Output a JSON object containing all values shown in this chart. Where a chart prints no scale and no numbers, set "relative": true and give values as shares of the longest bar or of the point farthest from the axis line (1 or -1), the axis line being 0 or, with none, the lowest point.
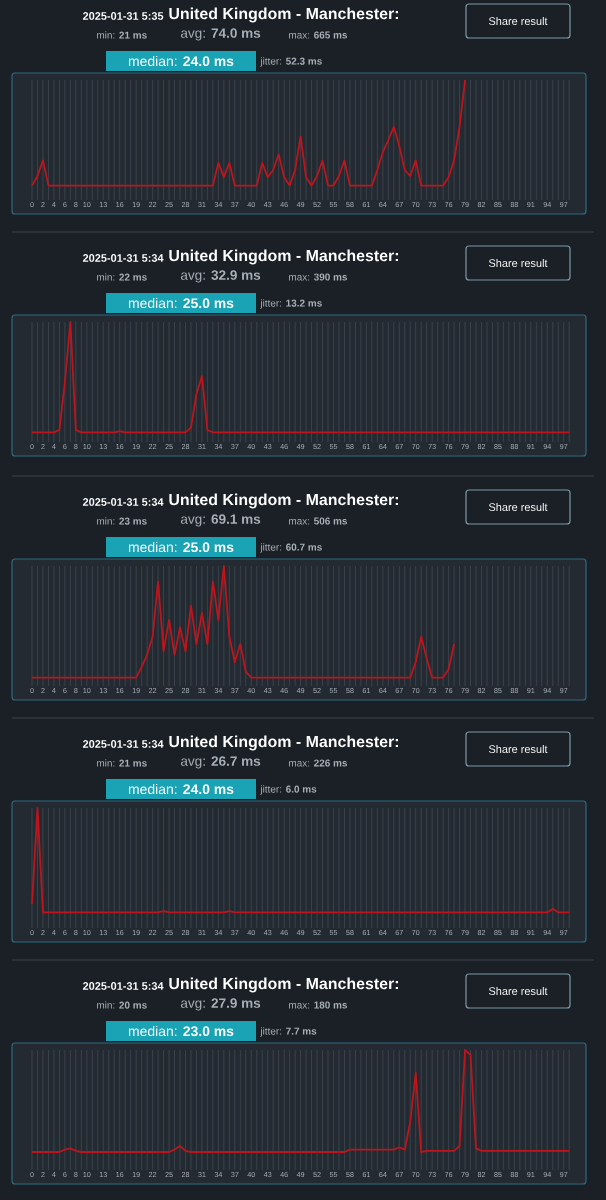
{
  "chart_data": [
    {
      "type": "line",
      "title": "United Kingdom - Manchester:",
      "subtitle": "2025-01-31 5:35",
      "relative": true,
      "grid": "x",
      "color": "#c0141c",
      "categories": [
        "0",
        null,
        "2",
        null,
        "4",
        null,
        "6",
        null,
        "8",
        null,
        "10",
        null,
        null,
        "13",
        null,
        null,
        "16",
        null,
        null,
        "19",
        null,
        null,
        "22",
        null,
        null,
        "25",
        null,
        null,
        "28",
        null,
        null,
        "31",
        null,
        null,
        "34",
        null,
        null,
        "37",
        null,
        null,
        "40",
        null,
        null,
        "43",
        null,
        null,
        "46",
        null,
        null,
        "49",
        null,
        null,
        "52",
        null,
        null,
        "55",
        null,
        null,
        "58",
        null,
        null,
        "61",
        null,
        null,
        "64",
        null,
        null,
        "67",
        null,
        null,
        "70",
        null,
        null,
        "73",
        null,
        null,
        "76",
        null,
        null,
        "79",
        null,
        null,
        "82",
        null,
        null,
        "85",
        null,
        null,
        "88",
        null,
        null,
        "91",
        null,
        null,
        "94",
        null,
        null,
        "97",
        null
      ],
      "values": [
        0.12,
        0.2,
        0.33,
        0.12,
        0.12,
        0.12,
        0.12,
        0.12,
        0.12,
        0.12,
        0.12,
        0.12,
        0.12,
        0.12,
        0.12,
        0.12,
        0.12,
        0.12,
        0.12,
        0.12,
        0.12,
        0.12,
        0.12,
        0.12,
        0.12,
        0.12,
        0.12,
        0.12,
        0.12,
        0.12,
        0.12,
        0.12,
        0.12,
        0.12,
        0.31,
        0.19,
        0.31,
        0.12,
        0.12,
        0.12,
        0.12,
        0.12,
        0.31,
        0.19,
        0.25,
        0.38,
        0.19,
        0.12,
        0.25,
        0.53,
        0.19,
        0.12,
        0.2,
        0.33,
        0.12,
        0.12,
        0.2,
        0.33,
        0.12,
        0.12,
        0.12,
        0.12,
        0.12,
        0.25,
        0.4,
        0.5,
        0.61,
        0.45,
        0.25,
        0.2,
        0.33,
        0.12,
        0.12,
        0.12,
        0.12,
        0.12,
        0.19,
        0.33,
        0.61,
        1.0,
        null,
        null,
        null,
        null,
        null,
        null,
        null,
        null,
        null,
        null,
        null,
        null,
        null,
        null,
        null,
        null,
        null,
        null,
        null
      ],
      "annotations": [
        "min: **21 ms**",
        "avg: **74.0 ms**",
        "max: **665 ms**",
        "median: **24.0 ms**",
        "jitter: **52.3 ms**",
        "Share result"
      ]
    },
    {
      "type": "line",
      "title": "United Kingdom - Manchester:",
      "subtitle": "2025-01-31 5:34",
      "relative": true,
      "grid": "x",
      "color": "#c0141c",
      "categories": [
        "0",
        null,
        "2",
        null,
        "4",
        null,
        "6",
        null,
        "8",
        null,
        "10",
        null,
        null,
        "13",
        null,
        null,
        "16",
        null,
        null,
        "19",
        null,
        null,
        "22",
        null,
        null,
        "25",
        null,
        null,
        "28",
        null,
        null,
        "31",
        null,
        null,
        "34",
        null,
        null,
        "37",
        null,
        null,
        "40",
        null,
        null,
        "43",
        null,
        null,
        "46",
        null,
        null,
        "49",
        null,
        null,
        "52",
        null,
        null,
        "55",
        null,
        null,
        "58",
        null,
        null,
        "61",
        null,
        null,
        "64",
        null,
        null,
        "67",
        null,
        null,
        "70",
        null,
        null,
        "73",
        null,
        null,
        "76",
        null,
        null,
        "79",
        null,
        null,
        "82",
        null,
        null,
        "85",
        null,
        null,
        "88",
        null,
        null,
        "91",
        null,
        null,
        "94",
        null,
        null,
        "97",
        null
      ],
      "values": [
        0.08,
        0.08,
        0.08,
        0.08,
        0.08,
        0.1,
        0.5,
        1.0,
        0.1,
        0.08,
        0.08,
        0.08,
        0.08,
        0.08,
        0.08,
        0.08,
        0.09,
        0.08,
        0.08,
        0.08,
        0.08,
        0.08,
        0.08,
        0.08,
        0.08,
        0.08,
        0.08,
        0.08,
        0.08,
        0.12,
        0.4,
        0.55,
        0.1,
        0.08,
        0.08,
        0.08,
        0.08,
        0.08,
        0.08,
        0.08,
        0.08,
        0.08,
        0.08,
        0.08,
        0.08,
        0.08,
        0.08,
        0.08,
        0.08,
        0.08,
        0.08,
        0.08,
        0.08,
        0.08,
        0.08,
        0.08,
        0.08,
        0.08,
        0.08,
        0.08,
        0.08,
        0.08,
        0.08,
        0.08,
        0.08,
        0.08,
        0.08,
        0.08,
        0.08,
        0.08,
        0.08,
        0.08,
        0.08,
        0.08,
        0.08,
        0.08,
        0.08,
        0.08,
        0.08,
        0.08,
        0.08,
        0.08,
        0.08,
        0.08,
        0.08,
        0.08,
        0.08,
        0.08,
        0.08,
        0.08,
        0.08,
        0.08,
        0.08,
        0.08,
        0.08,
        0.08,
        0.08,
        0.08,
        0.08
      ],
      "annotations": [
        "min: **22 ms**",
        "avg: **32.9 ms**",
        "max: **390 ms**",
        "median: **25.0 ms**",
        "jitter: **13.2 ms**",
        "Share result"
      ]
    },
    {
      "type": "line",
      "title": "United Kingdom - Manchester:",
      "subtitle": "2025-01-31 5:34",
      "relative": true,
      "grid": "x",
      "color": "#c0141c",
      "categories": [
        "0",
        null,
        "2",
        null,
        "4",
        null,
        "6",
        null,
        "8",
        null,
        "10",
        null,
        null,
        "13",
        null,
        null,
        "16",
        null,
        null,
        "19",
        null,
        null,
        "22",
        null,
        null,
        "25",
        null,
        null,
        "28",
        null,
        null,
        "31",
        null,
        null,
        "34",
        null,
        null,
        "37",
        null,
        null,
        "40",
        null,
        null,
        "43",
        null,
        null,
        "46",
        null,
        null,
        "49",
        null,
        null,
        "52",
        null,
        null,
        "55",
        null,
        null,
        "58",
        null,
        null,
        "61",
        null,
        null,
        "64",
        null,
        null,
        "67",
        null,
        null,
        "70",
        null,
        null,
        "73",
        null,
        null,
        "76",
        null,
        null,
        "79",
        null,
        null,
        "82",
        null,
        null,
        "85",
        null,
        null,
        "88",
        null,
        null,
        "91",
        null,
        null,
        "94",
        null,
        null,
        "97",
        null
      ],
      "values": [
        0.07,
        0.07,
        0.07,
        0.07,
        0.07,
        0.07,
        0.07,
        0.07,
        0.07,
        0.07,
        0.07,
        0.07,
        0.07,
        0.07,
        0.07,
        0.07,
        0.07,
        0.07,
        0.07,
        0.07,
        0.16,
        0.26,
        0.41,
        0.87,
        0.29,
        0.55,
        0.26,
        0.49,
        0.29,
        0.67,
        0.35,
        0.61,
        0.35,
        0.87,
        0.55,
        1.0,
        0.41,
        0.2,
        0.35,
        0.12,
        0.07,
        0.07,
        0.07,
        0.07,
        0.07,
        0.07,
        0.07,
        0.07,
        0.07,
        0.07,
        0.07,
        0.07,
        0.07,
        0.07,
        0.07,
        0.07,
        0.07,
        0.07,
        0.07,
        0.07,
        0.07,
        0.07,
        0.07,
        0.07,
        0.07,
        0.07,
        0.07,
        0.07,
        0.07,
        0.07,
        0.2,
        0.41,
        0.23,
        0.07,
        0.07,
        0.07,
        0.14,
        0.35,
        null,
        null,
        null,
        null,
        null,
        null,
        null,
        null,
        null,
        null,
        null,
        null,
        null,
        null,
        null,
        null,
        null,
        null,
        null,
        null,
        null
      ],
      "annotations": [
        "min: **23 ms**",
        "avg: **69.1 ms**",
        "max: **506 ms**",
        "median: **25.0 ms**",
        "jitter: **60.7 ms**",
        "Share result"
      ]
    },
    {
      "type": "line",
      "title": "United Kingdom - Manchester:",
      "subtitle": "2025-01-31 5:34",
      "relative": true,
      "grid": "x",
      "color": "#c0141c",
      "categories": [
        "0",
        null,
        "2",
        null,
        "4",
        null,
        "6",
        null,
        "8",
        null,
        "10",
        null,
        null,
        "13",
        null,
        null,
        "16",
        null,
        null,
        "19",
        null,
        null,
        "22",
        null,
        null,
        "25",
        null,
        null,
        "28",
        null,
        null,
        "31",
        null,
        null,
        "34",
        null,
        null,
        "37",
        null,
        null,
        "40",
        null,
        null,
        "43",
        null,
        null,
        "46",
        null,
        null,
        "49",
        null,
        null,
        "52",
        null,
        null,
        "55",
        null,
        null,
        "58",
        null,
        null,
        "61",
        null,
        null,
        "64",
        null,
        null,
        "67",
        null,
        null,
        "70",
        null,
        null,
        "73",
        null,
        null,
        "76",
        null,
        null,
        "79",
        null,
        null,
        "82",
        null,
        null,
        "85",
        null,
        null,
        "88",
        null,
        null,
        "91",
        null,
        null,
        "94",
        null,
        null,
        "97",
        null
      ],
      "values": [
        0.2,
        1.0,
        0.13,
        0.13,
        0.13,
        0.13,
        0.13,
        0.13,
        0.13,
        0.13,
        0.13,
        0.13,
        0.13,
        0.13,
        0.13,
        0.13,
        0.13,
        0.13,
        0.13,
        0.13,
        0.13,
        0.13,
        0.13,
        0.13,
        0.14,
        0.13,
        0.13,
        0.13,
        0.13,
        0.13,
        0.13,
        0.13,
        0.13,
        0.13,
        0.13,
        0.13,
        0.14,
        0.13,
        0.13,
        0.13,
        0.13,
        0.13,
        0.13,
        0.13,
        0.13,
        0.13,
        0.13,
        0.13,
        0.13,
        0.13,
        0.13,
        0.13,
        0.13,
        0.13,
        0.13,
        0.13,
        0.13,
        0.13,
        0.13,
        0.13,
        0.13,
        0.13,
        0.13,
        0.13,
        0.13,
        0.13,
        0.13,
        0.13,
        0.13,
        0.13,
        0.13,
        0.13,
        0.13,
        0.13,
        0.13,
        0.13,
        0.13,
        0.13,
        0.13,
        0.13,
        0.13,
        0.13,
        0.13,
        0.13,
        0.13,
        0.13,
        0.13,
        0.13,
        0.13,
        0.13,
        0.13,
        0.13,
        0.13,
        0.13,
        0.13,
        0.16,
        0.13,
        0.13,
        0.13
      ],
      "annotations": [
        "min: **21 ms**",
        "avg: **26.7 ms**",
        "max: **226 ms**",
        "median: **24.0 ms**",
        "jitter: **6.0 ms**",
        "Share result"
      ]
    },
    {
      "type": "line",
      "title": "United Kingdom - Manchester:",
      "subtitle": "2025-01-31 5:34",
      "relative": true,
      "grid": "x",
      "color": "#c0141c",
      "categories": [
        "0",
        null,
        "2",
        null,
        "4",
        null,
        "6",
        null,
        "8",
        null,
        "10",
        null,
        null,
        "13",
        null,
        null,
        "16",
        null,
        null,
        "19",
        null,
        null,
        "22",
        null,
        null,
        "25",
        null,
        null,
        "28",
        null,
        null,
        "31",
        null,
        null,
        "34",
        null,
        null,
        "37",
        null,
        null,
        "40",
        null,
        null,
        "43",
        null,
        null,
        "46",
        null,
        null,
        "49",
        null,
        null,
        "52",
        null,
        null,
        "55",
        null,
        null,
        "58",
        null,
        null,
        "61",
        null,
        null,
        "64",
        null,
        null,
        "67",
        null,
        null,
        "70",
        null,
        null,
        "73",
        null,
        null,
        "76",
        null,
        null,
        "79",
        null,
        null,
        "82",
        null,
        null,
        "85",
        null,
        null,
        "88",
        null,
        null,
        "91",
        null,
        null,
        "94",
        null,
        null,
        "97",
        null
      ],
      "values": [
        0.15,
        0.15,
        0.15,
        0.15,
        0.15,
        0.15,
        0.17,
        0.18,
        0.16,
        0.15,
        0.15,
        0.15,
        0.15,
        0.15,
        0.15,
        0.15,
        0.15,
        0.15,
        0.15,
        0.15,
        0.15,
        0.15,
        0.15,
        0.15,
        0.15,
        0.15,
        0.17,
        0.2,
        0.16,
        0.15,
        0.15,
        0.15,
        0.15,
        0.15,
        0.15,
        0.15,
        0.15,
        0.15,
        0.15,
        0.15,
        0.15,
        0.15,
        0.15,
        0.15,
        0.15,
        0.15,
        0.15,
        0.15,
        0.15,
        0.15,
        0.15,
        0.15,
        0.15,
        0.15,
        0.15,
        0.15,
        0.15,
        0.15,
        0.17,
        0.17,
        0.17,
        0.17,
        0.17,
        0.17,
        0.17,
        0.17,
        0.17,
        0.19,
        0.17,
        0.4,
        0.81,
        0.15,
        0.16,
        0.16,
        0.16,
        0.16,
        0.16,
        0.16,
        0.2,
        1.0,
        0.96,
        0.18,
        0.16,
        0.16,
        0.16,
        0.16,
        0.16,
        0.16,
        0.16,
        0.16,
        0.16,
        0.16,
        0.16,
        0.16,
        0.16,
        0.16,
        0.16,
        0.16,
        0.16
      ],
      "annotations": [
        "min: **20 ms**",
        "avg: **27.9 ms**",
        "max: **180 ms**",
        "median: **23.0 ms**",
        "jitter: **7.7 ms**",
        "Share result"
      ]
    }
  ]
}
